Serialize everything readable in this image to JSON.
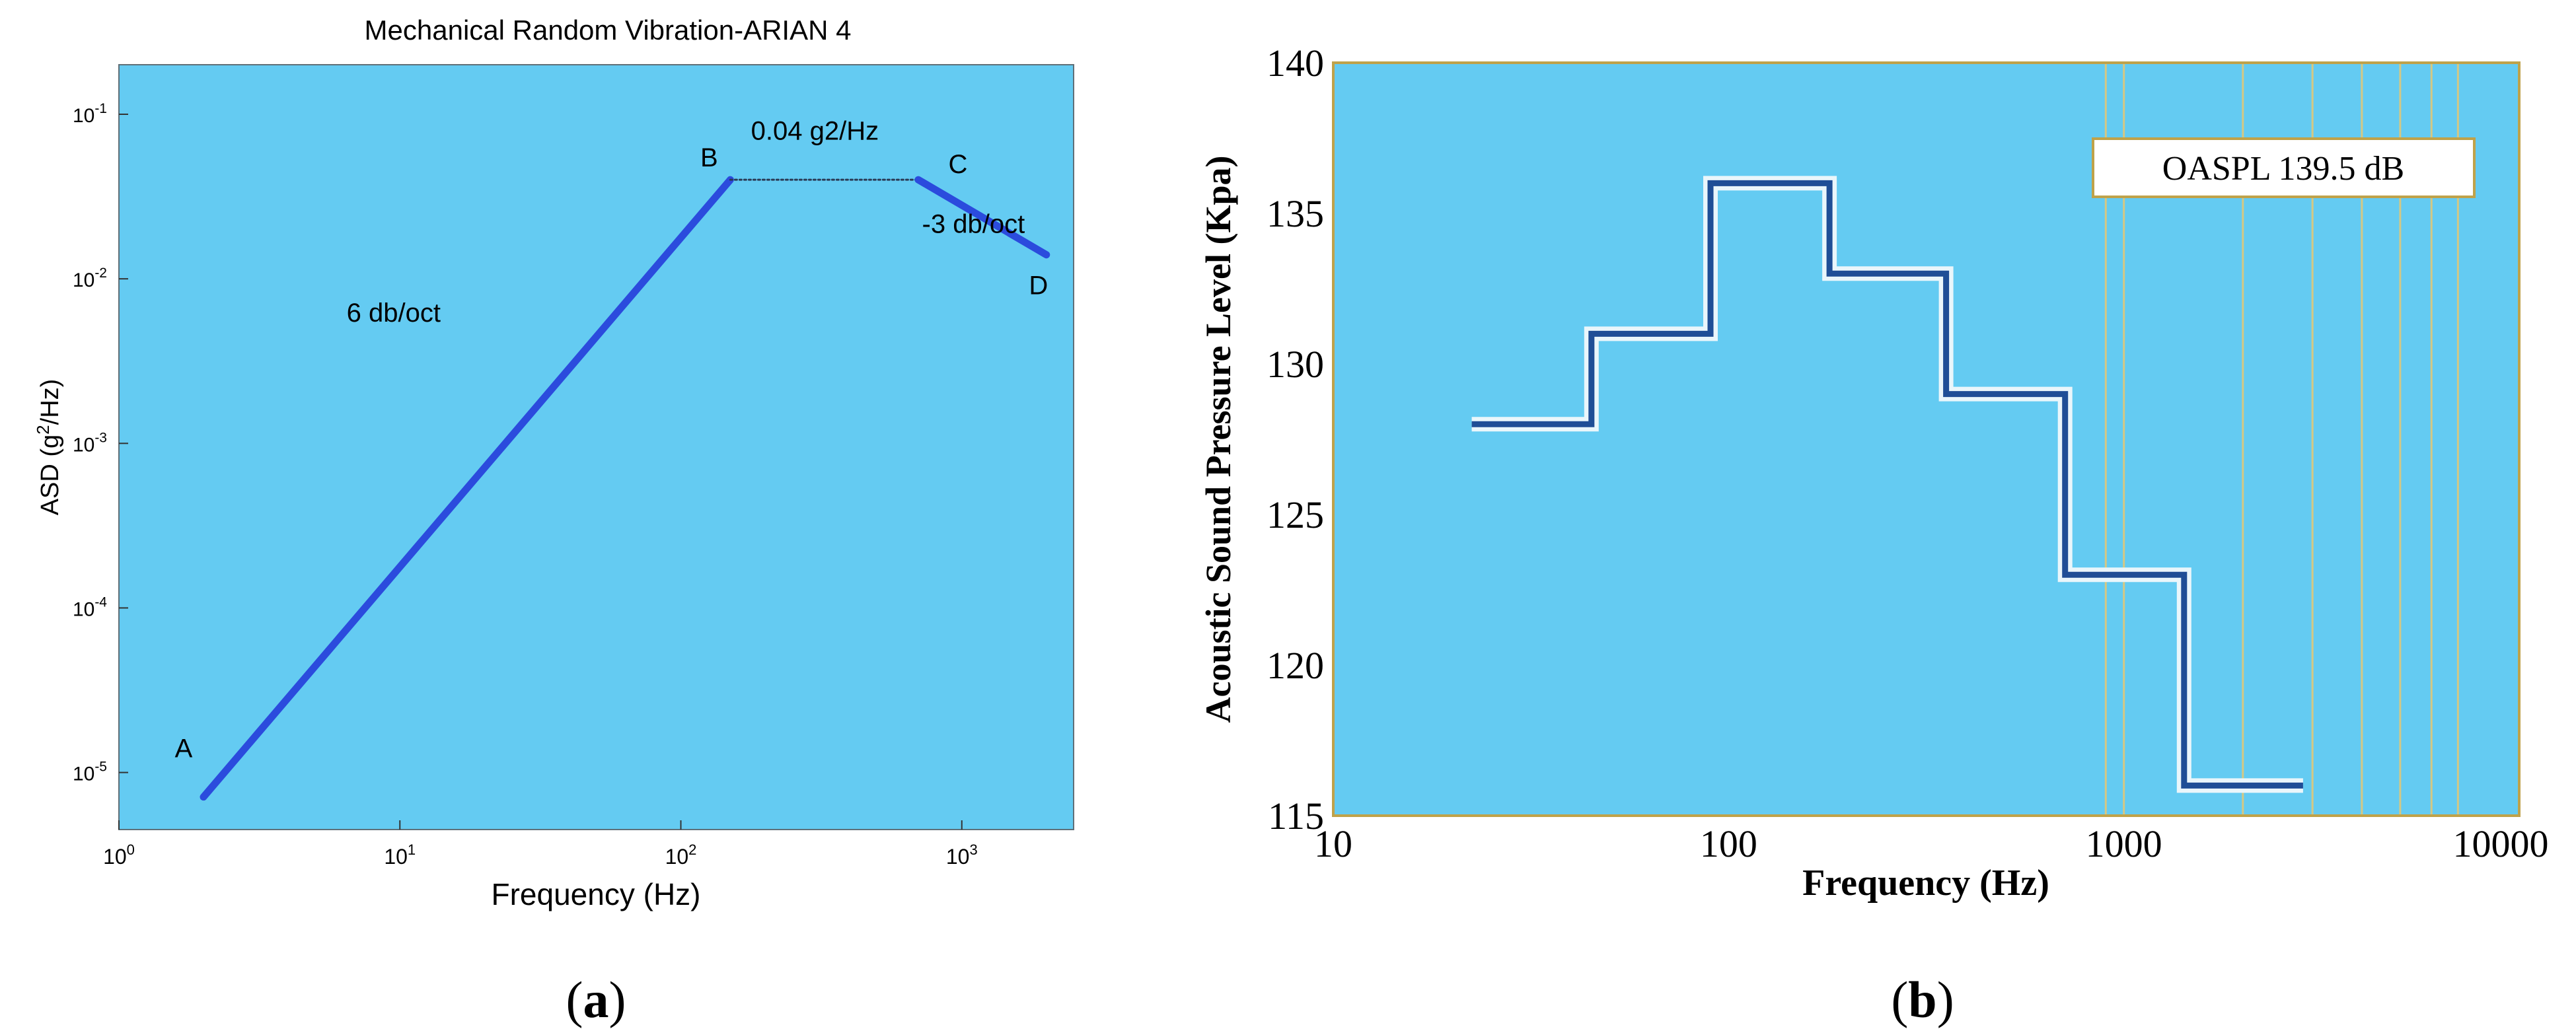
{
  "figure": {
    "panel_a_label": "a",
    "panel_b_label": "b"
  },
  "colors": {
    "plot_bg": "#64CBF2",
    "line_a": "#2B4BDD",
    "step_dark": "#1F4E96",
    "step_halo": "#EAF6FB",
    "frame_b": "#BFA24A",
    "vgrid_b": "#D4C884"
  },
  "chart_data": [
    {
      "type": "line",
      "title": "Mechanical Random Vibration-ARIAN 4",
      "xlabel": "Frequency (Hz)",
      "ylabel_prefix": "ASD (g",
      "ylabel_sup": "2",
      "ylabel_suffix": "/Hz)",
      "xscale": "log",
      "yscale": "log",
      "xlim": [
        1,
        2500
      ],
      "ylim": [
        4.5e-06,
        0.2
      ],
      "xticks": [
        {
          "v": 1,
          "base": "10",
          "exp": "0"
        },
        {
          "v": 10,
          "base": "10",
          "exp": "1"
        },
        {
          "v": 100,
          "base": "10",
          "exp": "2"
        },
        {
          "v": 1000,
          "base": "10",
          "exp": "3"
        }
      ],
      "yticks": [
        {
          "v": 1e-05,
          "base": "10",
          "exp": "-5"
        },
        {
          "v": 0.0001,
          "base": "10",
          "exp": "-4"
        },
        {
          "v": 0.001,
          "base": "10",
          "exp": "-3"
        },
        {
          "v": 0.01,
          "base": "10",
          "exp": "-2"
        },
        {
          "v": 0.1,
          "base": "10",
          "exp": "-1"
        }
      ],
      "segments": [
        {
          "x": [
            2,
            150
          ],
          "y": [
            7.1e-06,
            0.04
          ],
          "style": "solid"
        },
        {
          "x": [
            150,
            700
          ],
          "y": [
            0.04,
            0.04
          ],
          "style": "dotted"
        },
        {
          "x": [
            700,
            2000
          ],
          "y": [
            0.04,
            0.014
          ],
          "style": "solid"
        }
      ],
      "points": [
        {
          "label": "A",
          "x": 2,
          "y": 7.1e-06
        },
        {
          "label": "B",
          "x": 150,
          "y": 0.04
        },
        {
          "label": "C",
          "x": 700,
          "y": 0.04
        },
        {
          "label": "D",
          "x": 2000,
          "y": 0.014
        }
      ],
      "annotations": [
        {
          "text": "0.04 g2/Hz",
          "x": 300,
          "y": 0.07
        },
        {
          "text": "-3 db/oct",
          "x": 1100,
          "y": 0.019
        },
        {
          "text": "6 db/oct",
          "x": 9.5,
          "y": 0.0055
        }
      ]
    },
    {
      "type": "line",
      "step": true,
      "xlabel": "Frequency (Hz)",
      "ylabel": "Acoustic Sound Pressure Level (Kpa)",
      "xscale": "log",
      "xlim": [
        10,
        10000
      ],
      "ylim": [
        115,
        140
      ],
      "xticks": [
        {
          "v": 10,
          "label": "10"
        },
        {
          "v": 100,
          "label": "100"
        },
        {
          "v": 1000,
          "label": "1000"
        },
        {
          "v": 10000,
          "label": "10000"
        }
      ],
      "yticks": [
        {
          "v": 115,
          "label": "115"
        },
        {
          "v": 120,
          "label": "120"
        },
        {
          "v": 125,
          "label": "125"
        },
        {
          "v": 130,
          "label": "130"
        },
        {
          "v": 135,
          "label": "135"
        },
        {
          "v": 140,
          "label": "140"
        }
      ],
      "vertical_grid": [
        900,
        1000,
        2000,
        3000,
        4000,
        5000,
        6000,
        7000
      ],
      "steps": [
        {
          "x0": 22.4,
          "x1": 45,
          "y": 128
        },
        {
          "x0": 45,
          "x1": 90,
          "y": 131
        },
        {
          "x0": 90,
          "x1": 180,
          "y": 136
        },
        {
          "x0": 180,
          "x1": 355,
          "y": 133
        },
        {
          "x0": 355,
          "x1": 710,
          "y": 129
        },
        {
          "x0": 710,
          "x1": 1420,
          "y": 123
        },
        {
          "x0": 1420,
          "x1": 2840,
          "y": 116
        }
      ],
      "legend_box": "OASPL 139.5 dB"
    }
  ]
}
